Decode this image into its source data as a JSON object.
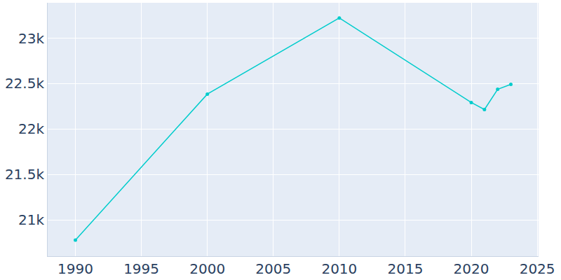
{
  "chart_data": {
    "type": "line",
    "x": [
      1990,
      2000,
      2010,
      2020,
      2021,
      2022,
      2023
    ],
    "values": [
      20777,
      22385,
      23223,
      22292,
      22215,
      22438,
      22492
    ],
    "color": "#00cccc",
    "marker": "circle",
    "xlim": [
      1987.9,
      2025.1
    ],
    "xticks": [
      1990,
      1995,
      2000,
      2005,
      2010,
      2015,
      2020,
      2025
    ],
    "ylim": [
      20600,
      23390
    ],
    "yticks": [
      {
        "value": 21000,
        "label": "21k"
      },
      {
        "value": 21500,
        "label": "21.5k"
      },
      {
        "value": 22000,
        "label": "22k"
      },
      {
        "value": 22500,
        "label": "22.5k"
      },
      {
        "value": 23000,
        "label": "23k"
      }
    ],
    "grid": true
  }
}
